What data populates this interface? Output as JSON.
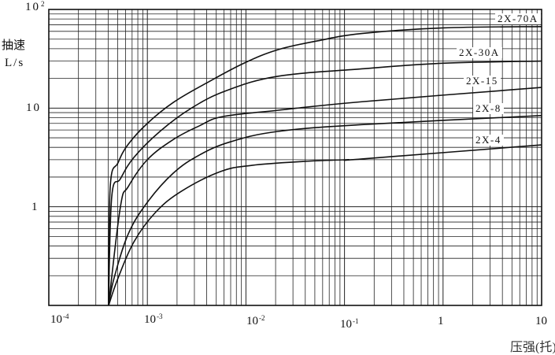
{
  "chart_data": {
    "type": "line",
    "title": "",
    "ylabel": "抽速",
    "yunit": "L/s",
    "xlabel": "压强(托)",
    "xscale": "log",
    "yscale": "log",
    "xlim": [
      0.0001,
      10
    ],
    "ylim": [
      0.1,
      100
    ],
    "grid": true,
    "x_ticks": [
      {
        "base": "10",
        "exp": "-4"
      },
      {
        "base": "10",
        "exp": "-3"
      },
      {
        "base": "10",
        "exp": "-2"
      },
      {
        "base": "10",
        "exp": "-1"
      },
      {
        "base": "1",
        "exp": ""
      },
      {
        "base": "10",
        "exp": ""
      }
    ],
    "y_ticks": [
      {
        "base": "10",
        "exp": "2"
      },
      {
        "base": "10",
        "exp": ""
      },
      {
        "base": "1",
        "exp": ""
      }
    ],
    "line_color": "#111111",
    "series": [
      {
        "name": "2X-70A",
        "points": [
          [
            0.000405,
            0.1
          ],
          [
            0.00042,
            1.6
          ],
          [
            0.000505,
            2.8
          ],
          [
            0.00064,
            4.3
          ],
          [
            0.001,
            7.0
          ],
          [
            0.00183,
            11.4
          ],
          [
            0.004,
            18
          ],
          [
            0.0096,
            28.6
          ],
          [
            0.021,
            39
          ],
          [
            0.053,
            48
          ],
          [
            0.15,
            57
          ],
          [
            1,
            65
          ],
          [
            10,
            67
          ]
        ]
      },
      {
        "name": "2X-30A",
        "points": [
          [
            0.000405,
            0.1
          ],
          [
            0.000435,
            1.26
          ],
          [
            0.000533,
            1.92
          ],
          [
            0.00073,
            3.16
          ],
          [
            0.00134,
            5.8
          ],
          [
            0.0028,
            10
          ],
          [
            0.0063,
            15
          ],
          [
            0.021,
            21
          ],
          [
            0.15,
            25
          ],
          [
            1,
            28.5
          ],
          [
            10,
            30
          ]
        ]
      },
      {
        "name": "2X-15",
        "points": [
          [
            0.000405,
            0.1
          ],
          [
            0.000533,
            1.0
          ],
          [
            0.00064,
            1.6
          ],
          [
            0.001,
            3.0
          ],
          [
            0.00183,
            4.8
          ],
          [
            0.00336,
            6.6
          ],
          [
            0.0058,
            8.2
          ],
          [
            0.021,
            9.5
          ],
          [
            0.15,
            11.6
          ],
          [
            10,
            16.2
          ]
        ]
      },
      {
        "name": "2X-8",
        "points": [
          [
            0.000405,
            0.1
          ],
          [
            0.00046,
            0.19
          ],
          [
            0.00064,
            0.53
          ],
          [
            0.001,
            1.11
          ],
          [
            0.00183,
            2.19
          ],
          [
            0.00336,
            3.34
          ],
          [
            0.007,
            4.56
          ],
          [
            0.021,
            5.8
          ],
          [
            0.15,
            6.8
          ],
          [
            10,
            8.4
          ]
        ]
      },
      {
        "name": "2X-4",
        "points": [
          [
            0.000405,
            0.1
          ],
          [
            0.000505,
            0.19
          ],
          [
            0.00073,
            0.44
          ],
          [
            0.0012,
            0.87
          ],
          [
            0.0022,
            1.43
          ],
          [
            0.0055,
            2.27
          ],
          [
            0.0115,
            2.63
          ],
          [
            0.039,
            2.88
          ],
          [
            0.105,
            3.0
          ],
          [
            0.15,
            3.05
          ],
          [
            10,
            4.24
          ]
        ]
      }
    ]
  }
}
